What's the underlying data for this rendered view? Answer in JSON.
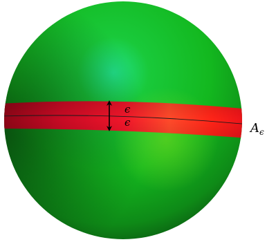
{
  "figure": {
    "band_label": "A",
    "band_label_subscript": "ϵ",
    "upper_epsilon": "ϵ",
    "lower_epsilon": "ϵ"
  },
  "colors": {
    "sphere_highlight": "#22e08a",
    "sphere_light": "#19c93a",
    "sphere_mid": "#13b81f",
    "sphere_dark": "#0b5a11",
    "band_bright": "#ff3c2a",
    "band_mid": "#ff1a1a",
    "band_dark": "#b80a1e",
    "equator_line": "#1a1a1a",
    "arrow": "#000000"
  }
}
